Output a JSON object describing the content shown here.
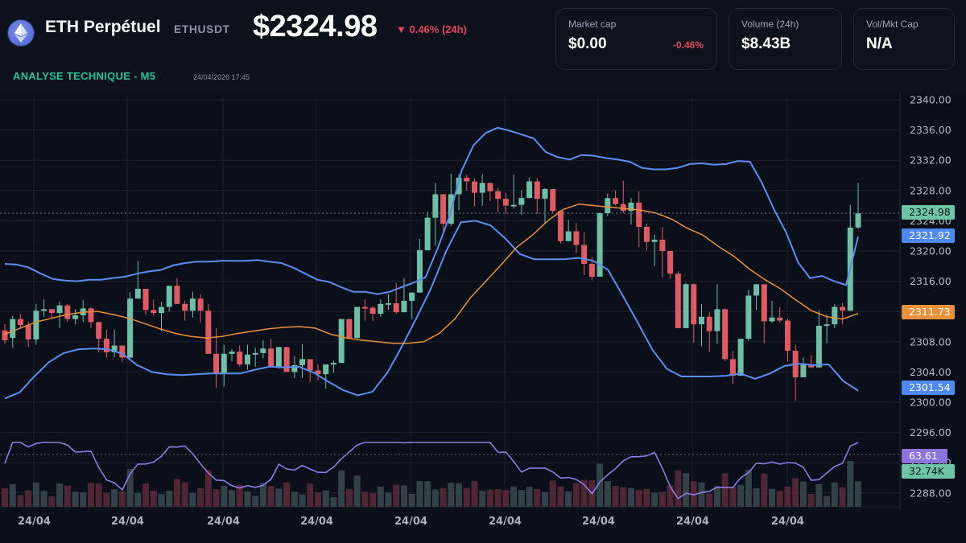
{
  "header": {
    "asset_name": "ETH Perpétuel",
    "ticker": "ETHUSDT",
    "price": "$2324.98",
    "change": "▼ 0.46% (24h)",
    "subtitle": "ANALYSE TECHNIQUE - M5",
    "timestamp": "24/04/2026 17:45",
    "logo_icon": "ethereum-icon"
  },
  "stats": [
    {
      "label": "Market cap",
      "value": "$0.00",
      "change": "-0.46%"
    },
    {
      "label": "Volume (24h)",
      "value": "$8.43B",
      "change": ""
    },
    {
      "label": "Vol/Mkt Cap",
      "value": "N/A",
      "change": ""
    }
  ],
  "colors": {
    "up": "#6dbfa5",
    "down": "#e05a63",
    "bollinger": "#5b8def",
    "ma": "#e8913a",
    "rsi": "#8b7be0",
    "accent_text": "#22c39a",
    "negative": "#e5465f"
  },
  "tags": {
    "last_price": "2324.98",
    "upper_band": "2321.92",
    "ma": "2311.73",
    "lower_band": "2301.54",
    "rsi": "63.61",
    "volume": "32.74K"
  },
  "chart_data": {
    "type": "candlestick",
    "title": "ETH Perpétuel ETHUSDT — Analyse technique M5",
    "y_axis": {
      "ticks": [
        "2340.00",
        "2336.00",
        "2332.00",
        "2328.00",
        "2324.00",
        "2320.00",
        "2316.00",
        "2312.00",
        "2308.00",
        "2304.00",
        "2300.00",
        "2296.00",
        "2292.00",
        "2288.00"
      ],
      "range": [
        2287,
        2341
      ]
    },
    "x_axis": {
      "ticks": [
        "24/04",
        "24/04",
        "24/04",
        "24/04",
        "24/04",
        "24/04",
        "24/04",
        "24/04",
        "24/04"
      ]
    },
    "grid": true,
    "indicators": [
      "Bollinger Bands (upper/lower)",
      "Moving average (middle)",
      "RSI",
      "Volume"
    ],
    "candles": [
      [
        2309.5,
        2310.3,
        2307.7,
        2308.2
      ],
      [
        2308.5,
        2311.4,
        2307.2,
        2311.0
      ],
      [
        2311.0,
        2311.7,
        2309.7,
        2310.2
      ],
      [
        2310.2,
        2310.7,
        2307.3,
        2308.3
      ],
      [
        2308.3,
        2313.0,
        2307.6,
        2312.1
      ],
      [
        2312.1,
        2313.6,
        2311.3,
        2312.3
      ],
      [
        2312.3,
        2312.2,
        2311.2,
        2311.8
      ],
      [
        2311.8,
        2313.3,
        2309.8,
        2312.8
      ],
      [
        2312.8,
        2313.0,
        2310.6,
        2311.0
      ],
      [
        2311.0,
        2312.3,
        2310.3,
        2311.5
      ],
      [
        2311.5,
        2313.5,
        2310.6,
        2312.4
      ],
      [
        2312.4,
        2312.6,
        2309.8,
        2310.6
      ],
      [
        2310.6,
        2309.0,
        2306.6,
        2308.4
      ],
      [
        2308.4,
        2309.6,
        2305.9,
        2306.6
      ],
      [
        2306.6,
        2309.6,
        2306.0,
        2307.5
      ],
      [
        2307.5,
        2307.5,
        2305.3,
        2305.9
      ],
      [
        2305.9,
        2314.6,
        2305.8,
        2313.7
      ],
      [
        2313.7,
        2318.7,
        2314.0,
        2315.0
      ],
      [
        2315.0,
        2314.7,
        2311.5,
        2312.2
      ],
      [
        2312.2,
        2313.6,
        2311.5,
        2311.8
      ],
      [
        2311.8,
        2313.3,
        2309.4,
        2312.6
      ],
      [
        2312.6,
        2315.4,
        2312.0,
        2315.4
      ],
      [
        2315.4,
        2316.4,
        2314.2,
        2313.0
      ],
      [
        2313.0,
        2313.4,
        2310.8,
        2312.1
      ],
      [
        2312.1,
        2314.6,
        2311.2,
        2313.7
      ],
      [
        2313.7,
        2314.3,
        2310.5,
        2312.1
      ],
      [
        2312.1,
        2313.0,
        2307.3,
        2306.4
      ],
      [
        2306.4,
        2309.8,
        2301.9,
        2303.8
      ],
      [
        2303.8,
        2307.6,
        2302.1,
        2306.4
      ],
      [
        2306.4,
        2307.0,
        2305.4,
        2306.7
      ],
      [
        2306.7,
        2307.5,
        2304.7,
        2305.0
      ],
      [
        2305.0,
        2307.6,
        2304.3,
        2306.3
      ],
      [
        2306.3,
        2307.2,
        2304.7,
        2306.5
      ],
      [
        2306.5,
        2308.2,
        2305.8,
        2307.1
      ],
      [
        2307.1,
        2308.4,
        2304.7,
        2304.7
      ],
      [
        2304.7,
        2307.0,
        2304.4,
        2307.3
      ],
      [
        2307.3,
        2307.0,
        2304.3,
        2304.0
      ],
      [
        2304.0,
        2306.1,
        2303.2,
        2304.9
      ],
      [
        2304.9,
        2307.7,
        2303.2,
        2305.7
      ],
      [
        2305.7,
        2305.4,
        2302.7,
        2304.2
      ],
      [
        2304.2,
        2305.0,
        2302.9,
        2303.7
      ],
      [
        2303.7,
        2304.6,
        2301.8,
        2305.0
      ],
      [
        2305.0,
        2305.5,
        2303.9,
        2305.2
      ],
      [
        2305.2,
        2311.0,
        2308.0,
        2311.0
      ],
      [
        2311.0,
        2310.8,
        2309.7,
        2308.5
      ],
      [
        2308.5,
        2312.6,
        2308.3,
        2312.6
      ],
      [
        2312.6,
        2313.6,
        2310.8,
        2312.5
      ],
      [
        2312.5,
        2312.7,
        2310.7,
        2311.7
      ],
      [
        2311.7,
        2313.6,
        2311.3,
        2313.0
      ],
      [
        2313.0,
        2314.3,
        2312.2,
        2313.1
      ],
      [
        2313.1,
        2315.8,
        2311.7,
        2311.9
      ],
      [
        2311.9,
        2316.4,
        2312.0,
        2313.4
      ],
      [
        2313.4,
        2314.5,
        2311.0,
        2314.5
      ],
      [
        2314.5,
        2321.6,
        2314.5,
        2320.1
      ],
      [
        2320.1,
        2325.2,
        2320.1,
        2324.4
      ],
      [
        2324.4,
        2329.0,
        2320.7,
        2327.5
      ],
      [
        2327.5,
        2327.4,
        2322.2,
        2323.6
      ],
      [
        2323.6,
        2330.2,
        2323.3,
        2327.5
      ],
      [
        2327.5,
        2330.2,
        2325.4,
        2329.7
      ],
      [
        2329.7,
        2330.1,
        2328.0,
        2329.2
      ],
      [
        2329.2,
        2329.6,
        2325.9,
        2327.7
      ],
      [
        2327.7,
        2330.2,
        2326.0,
        2329.0
      ],
      [
        2329.0,
        2329.0,
        2326.6,
        2327.9
      ],
      [
        2327.9,
        2328.4,
        2325.1,
        2326.9
      ],
      [
        2326.9,
        2327.7,
        2324.9,
        2326.0
      ],
      [
        2326.0,
        2330.1,
        2325.6,
        2326.1
      ],
      [
        2326.1,
        2328.0,
        2324.8,
        2327.0
      ],
      [
        2327.0,
        2329.7,
        2327.4,
        2329.2
      ],
      [
        2329.2,
        2329.7,
        2324.9,
        2326.9
      ],
      [
        2326.9,
        2328.3,
        2323.6,
        2328.2
      ],
      [
        2328.2,
        2328.1,
        2325.0,
        2325.3
      ],
      [
        2325.3,
        2325.3,
        2321.0,
        2321.3
      ],
      [
        2321.3,
        2324.1,
        2322.0,
        2322.6
      ],
      [
        2322.6,
        2323.7,
        2319.7,
        2320.8
      ],
      [
        2320.8,
        2322.5,
        2316.8,
        2318.3
      ],
      [
        2318.3,
        2319.2,
        2316.1,
        2316.6
      ],
      [
        2316.6,
        2325.1,
        2316.6,
        2325.0
      ],
      [
        2325.0,
        2327.6,
        2324.6,
        2327.0
      ],
      [
        2327.0,
        2328.0,
        2326.0,
        2326.2
      ],
      [
        2326.2,
        2329.3,
        2325.0,
        2325.3
      ],
      [
        2325.3,
        2327.0,
        2323.5,
        2326.4
      ],
      [
        2326.4,
        2327.9,
        2320.5,
        2323.2
      ],
      [
        2323.2,
        2323.6,
        2320.1,
        2321.2
      ],
      [
        2321.2,
        2322.2,
        2318.0,
        2321.5
      ],
      [
        2321.5,
        2323.2,
        2316.5,
        2320.0
      ],
      [
        2320.0,
        2318.7,
        2316.3,
        2317.0
      ],
      [
        2317.0,
        2317.3,
        2309.9,
        2309.8
      ],
      [
        2309.8,
        2315.8,
        2310.9,
        2315.6
      ],
      [
        2315.6,
        2315.7,
        2307.9,
        2310.3
      ],
      [
        2310.3,
        2313.0,
        2307.4,
        2311.3
      ],
      [
        2311.3,
        2311.9,
        2306.7,
        2309.4
      ],
      [
        2309.4,
        2315.6,
        2307.7,
        2312.3
      ],
      [
        2312.3,
        2312.4,
        2305.4,
        2305.7
      ],
      [
        2305.7,
        2306.8,
        2302.4,
        2303.5
      ],
      [
        2303.5,
        2308.4,
        2304.2,
        2308.4
      ],
      [
        2308.4,
        2314.9,
        2308.1,
        2314.1
      ],
      [
        2314.1,
        2315.4,
        2312.2,
        2315.6
      ],
      [
        2315.6,
        2314.5,
        2307.8,
        2310.7
      ],
      [
        2310.7,
        2313.4,
        2310.5,
        2311.2
      ],
      [
        2311.2,
        2312.6,
        2310.6,
        2310.8
      ],
      [
        2310.8,
        2311.0,
        2305.4,
        2306.8
      ],
      [
        2306.8,
        2307.6,
        2300.2,
        2303.3
      ],
      [
        2303.3,
        2305.9,
        2303.4,
        2305.0
      ],
      [
        2305.0,
        2306.2,
        2304.5,
        2304.6
      ],
      [
        2304.6,
        2312.2,
        2304.9,
        2310.1
      ],
      [
        2310.1,
        2311.6,
        2307.8,
        2310.3
      ],
      [
        2310.3,
        2313.0,
        2309.8,
        2312.6
      ],
      [
        2312.6,
        2313.1,
        2310.3,
        2312.1
      ],
      [
        2312.1,
        2326.1,
        2312.1,
        2323.1
      ],
      [
        2323.1,
        2329.0,
        2322.9,
        2324.98
      ]
    ],
    "upper_band": [
      2318.3,
      2318.2,
      2317.8,
      2317.0,
      2316.3,
      2316.1,
      2316.0,
      2316.2,
      2316.2,
      2316.4,
      2316.6,
      2317.0,
      2317.3,
      2317.5,
      2318.1,
      2318.4,
      2318.6,
      2318.6,
      2318.7,
      2318.7,
      2318.7,
      2318.8,
      2318.6,
      2318.4,
      2317.8,
      2317.0,
      2316.2,
      2315.9,
      2315.2,
      2314.6,
      2314.6,
      2314.3,
      2314.6,
      2315.2,
      2315.8,
      2316.5,
      2320.3,
      2324.6,
      2330.6,
      2334.0,
      2335.6,
      2336.3,
      2335.9,
      2335.4,
      2334.9,
      2333.1,
      2332.4,
      2332.1,
      2332.7,
      2332.6,
      2332.3,
      2332.1,
      2331.8,
      2331.0,
      2330.8,
      2330.8,
      2331.0,
      2331.5,
      2331.6,
      2331.4,
      2331.5,
      2331.9,
      2331.8,
      2329.0,
      2325.5,
      2322.5,
      2318.5,
      2316.4,
      2316.7,
      2316.0,
      2315.5,
      2321.9
    ],
    "ma": [
      2309.0,
      2309.8,
      2310.6,
      2311.1,
      2311.6,
      2311.9,
      2312.0,
      2311.6,
      2311.1,
      2310.4,
      2309.7,
      2309.1,
      2308.7,
      2308.5,
      2308.7,
      2309.1,
      2309.4,
      2309.7,
      2309.9,
      2310.0,
      2309.8,
      2309.0,
      2308.5,
      2308.2,
      2308.0,
      2307.8,
      2307.8,
      2308.0,
      2309.1,
      2311.0,
      2313.8,
      2316.0,
      2318.2,
      2320.5,
      2322.1,
      2324.0,
      2325.5,
      2326.2,
      2326.0,
      2325.8,
      2325.6,
      2325.4,
      2325.0,
      2324.2,
      2323.0,
      2322.1,
      2320.6,
      2319.3,
      2317.6,
      2316.2,
      2315.0,
      2313.5,
      2312.1,
      2311.3,
      2311.0,
      2311.73
    ],
    "lower_band": [
      2300.5,
      2301.3,
      2303.4,
      2305.3,
      2306.5,
      2307.0,
      2307.1,
      2307.0,
      2306.4,
      2304.9,
      2304.0,
      2303.7,
      2303.6,
      2303.7,
      2303.8,
      2303.8,
      2303.8,
      2304.3,
      2304.7,
      2304.6,
      2304.7,
      2303.9,
      2302.7,
      2301.6,
      2300.9,
      2301.4,
      2303.9,
      2307.4,
      2311.2,
      2315.2,
      2320.0,
      2323.8,
      2324.0,
      2323.4,
      2321.7,
      2319.6,
      2318.9,
      2318.9,
      2318.9,
      2319.1,
      2318.7,
      2317.5,
      2314.1,
      2310.6,
      2307.0,
      2304.4,
      2303.4,
      2303.4,
      2303.4,
      2303.5,
      2303.8,
      2303.1,
      2303.8,
      2304.8,
      2305.1,
      2304.9,
      2305.0,
      2302.8,
      2301.54
    ]
  }
}
